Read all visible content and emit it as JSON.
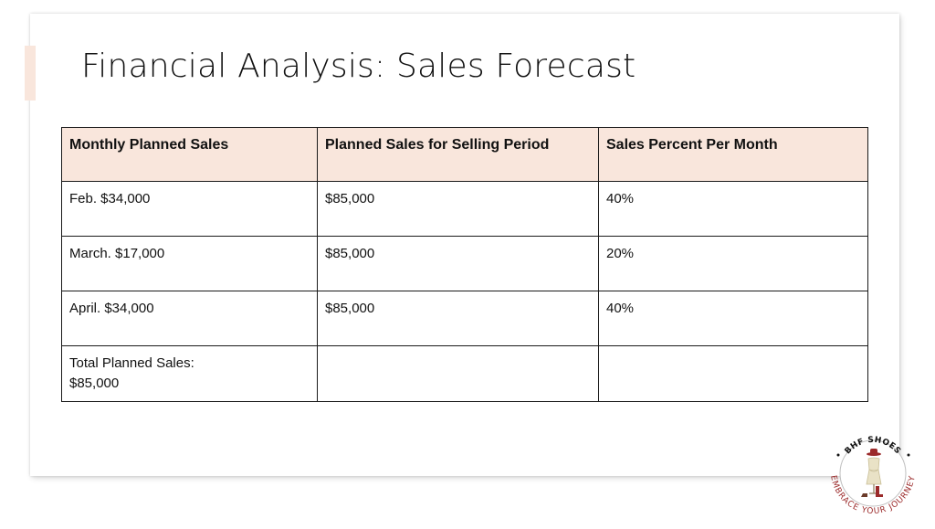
{
  "slide": {
    "title": "Financial Analysis: Sales Forecast"
  },
  "table": {
    "headers": [
      "Monthly Planned Sales",
      "Planned Sales for Selling Period",
      "Sales Percent Per Month"
    ],
    "rows": [
      [
        "Feb.  $34,000",
        "$85,000",
        "40%"
      ],
      [
        "March. $17,000",
        "$85,000",
        "20%"
      ],
      [
        "April. $34,000",
        "$85,000",
        "40%"
      ]
    ],
    "total": {
      "line1": "Total Planned Sales:",
      "line2": "$85,000"
    }
  },
  "logo": {
    "top_text": "BHF SHOES",
    "bottom_text": "EMBRACE YOUR JOURNEY"
  },
  "colors": {
    "header_bg": "#f9e6dc",
    "logo_text": "#9b2a2a"
  }
}
